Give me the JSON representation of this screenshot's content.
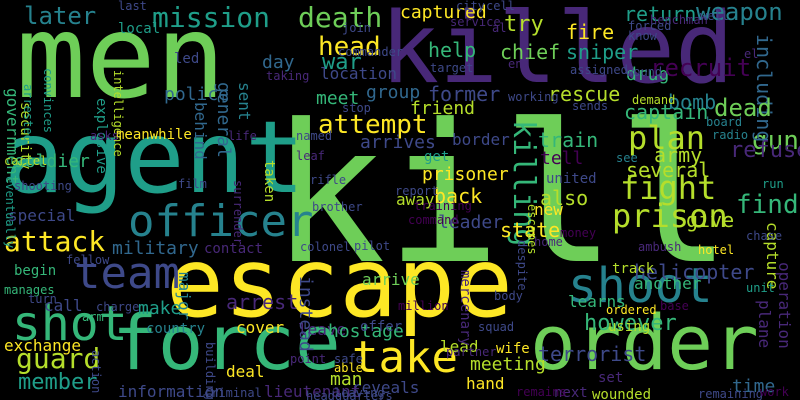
{
  "background": "#000000",
  "palette": {
    "yellow": "#fde725",
    "lime": "#b5de2b",
    "green": "#6ece58",
    "sea": "#35b779",
    "teal": "#1f9e89",
    "cyan": "#26828e",
    "blue": "#31688e",
    "indigo": "#3e4989",
    "violet": "#482878",
    "purple": "#440154"
  },
  "words": [
    "kill",
    "men",
    "killed",
    "agent",
    "escape",
    "order",
    "force",
    "officer",
    "shoot",
    "team",
    "take",
    "shot",
    "mission",
    "death",
    "head",
    "attempt",
    "plan",
    "prison",
    "fight",
    "killing",
    "attack",
    "guard",
    "member",
    "however",
    "find",
    "gun",
    "later",
    "captured",
    "return",
    "weapon",
    "fire",
    "war",
    "help",
    "try",
    "sniper",
    "drug",
    "recruit",
    "chief",
    "including",
    "government",
    "security",
    "soldier",
    "police",
    "day",
    "led",
    "local",
    "rescue",
    "bomb",
    "dead",
    "captain",
    "army",
    "refuse",
    "several",
    "train",
    "tell",
    "former",
    "friend",
    "arrives",
    "group",
    "meet",
    "location",
    "sent",
    "explosive",
    "intelligence",
    "military",
    "general",
    "border",
    "prisoner",
    "back",
    "also",
    "united",
    "leader",
    "state",
    "away",
    "new",
    "give",
    "capture",
    "helicopter",
    "track",
    "another",
    "operation",
    "plane",
    "time",
    "terrorist",
    "using",
    "learns",
    "arrest",
    "cover",
    "leave",
    "hostage",
    "meeting",
    "lead",
    "wife",
    "reveals",
    "hand",
    "man",
    "deal",
    "information",
    "lieutenant",
    "next",
    "wounded",
    "set",
    "exchange",
    "call",
    "make",
    "country",
    "major",
    "instead",
    "offer",
    "arrive",
    "mercenary",
    "contact",
    "begin",
    "special",
    "meanwhile",
    "behind",
    "escapes",
    "life",
    "named",
    "leaf",
    "taken",
    "brother",
    "surrender",
    "rifle",
    "colonel",
    "get",
    "report",
    "training",
    "manages",
    "turn",
    "charge",
    "arm",
    "body",
    "despite",
    "ordered",
    "unit",
    "money",
    "home",
    "pilot",
    "ambush",
    "hotel",
    "chase",
    "fellow",
    "partner",
    "safe",
    "able",
    "point",
    "building",
    "action",
    "criminal",
    "leaving",
    "working",
    "sends",
    "demand",
    "board",
    "radio",
    "see",
    "run",
    "cartel",
    "eventually",
    "shooting",
    "film",
    "arrested",
    "convinces",
    "asks",
    "commander",
    "stop",
    "join",
    "last",
    "city",
    "cell",
    "service",
    "henchman",
    "forced",
    "know",
    "well",
    "target",
    "assigned",
    "wound",
    "end",
    "al",
    "el",
    "taking",
    "command",
    "headquarters",
    "squad",
    "remaining",
    "base",
    "million",
    "remains",
    "work",
    "infor"
  ]
}
